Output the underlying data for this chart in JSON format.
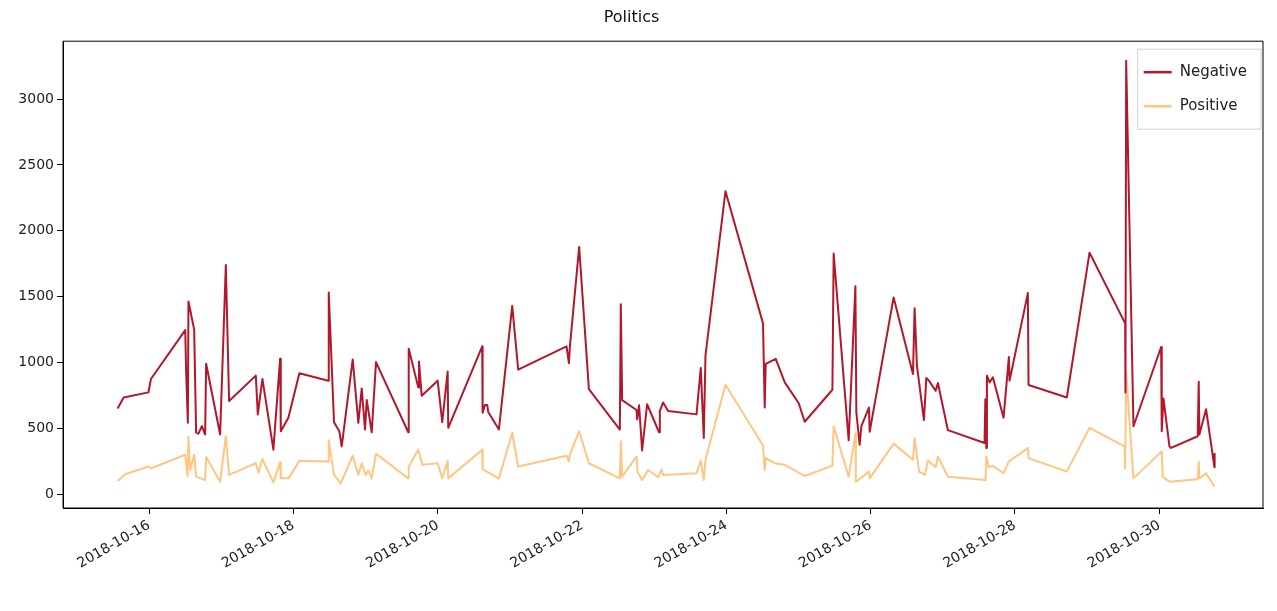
{
  "chart_data": {
    "type": "line",
    "title": "Politics",
    "xlim": [
      "2018-10-14T19:20",
      "2018-10-31T10:30"
    ],
    "xticks": [
      "2018-10-16",
      "2018-10-18",
      "2018-10-20",
      "2018-10-22",
      "2018-10-24",
      "2018-10-26",
      "2018-10-28",
      "2018-10-30"
    ],
    "ylim": [
      -105,
      3440
    ],
    "yticks": [
      0,
      500,
      1000,
      1500,
      2000,
      2500,
      3000
    ],
    "legend": "top right",
    "series": [
      {
        "name": "Negative",
        "color": "#b2182b",
        "x": [
          "2018-10-15T13:30",
          "2018-10-15T15:30",
          "2018-10-15T23:45",
          "2018-10-16T00:35",
          "2018-10-16T12:00",
          "2018-10-16T12:18",
          "2018-10-16T12:52",
          "2018-10-16T13:04",
          "2018-10-16T14:58",
          "2018-10-16T15:37",
          "2018-10-16T16:23",
          "2018-10-16T17:31",
          "2018-10-16T18:37",
          "2018-10-16T18:57",
          "2018-10-16T23:36",
          "2018-10-17T01:30",
          "2018-10-17T02:35",
          "2018-10-17T11:28",
          "2018-10-17T12:08",
          "2018-10-17T13:40",
          "2018-10-17T17:19",
          "2018-10-17T19:33",
          "2018-10-17T19:47",
          "2018-10-17T22:18",
          "2018-10-18T01:58",
          "2018-10-18T11:36",
          "2018-10-18T11:44",
          "2018-10-18T13:29",
          "2018-10-18T15:15",
          "2018-10-18T16:03",
          "2018-10-18T19:42",
          "2018-10-18T21:34",
          "2018-10-18T22:42",
          "2018-10-18T23:48",
          "2018-10-19T00:22",
          "2018-10-19T02:02",
          "2018-10-19T03:27",
          "2018-10-19T14:11",
          "2018-10-19T14:20",
          "2018-10-19T17:31",
          "2018-10-19T17:45",
          "2018-10-19T18:39",
          "2018-10-19T23:58",
          "2018-10-20T01:29",
          "2018-10-20T03:17",
          "2018-10-20T03:29",
          "2018-10-20T14:47",
          "2018-10-20T14:55",
          "2018-10-20T15:41",
          "2018-10-20T16:27",
          "2018-10-20T16:47",
          "2018-10-20T20:20",
          "2018-10-21T00:46",
          "2018-10-21T02:45",
          "2018-10-21T18:50",
          "2018-10-21T19:37",
          "2018-10-21T19:57",
          "2018-10-21T23:02",
          "2018-10-22T02:16",
          "2018-10-22T12:34",
          "2018-10-22T12:53",
          "2018-10-22T13:20",
          "2018-10-22T18:07",
          "2018-10-22T18:19",
          "2018-10-22T18:58",
          "2018-10-22T19:58",
          "2018-10-22T21:38",
          "2018-10-23T01:37",
          "2018-10-23T01:52",
          "2018-10-23T02:57",
          "2018-10-23T04:37",
          "2018-10-23T14:04",
          "2018-10-23T15:29",
          "2018-10-23T16:29",
          "2018-10-23T17:03",
          "2018-10-23T23:42",
          "2018-10-24T12:11",
          "2018-10-24T12:45",
          "2018-10-24T13:05",
          "2018-10-24T16:25",
          "2018-10-24T19:25",
          "2018-10-25T00:04",
          "2018-10-25T02:03",
          "2018-10-25T11:16",
          "2018-10-25T11:41",
          "2018-10-25T16:41",
          "2018-10-25T18:55",
          "2018-10-25T19:14",
          "2018-10-25T20:20",
          "2018-10-25T20:54",
          "2018-10-25T23:25",
          "2018-10-25T23:40",
          "2018-10-26T07:38",
          "2018-10-26T14:04",
          "2018-10-26T14:37",
          "2018-10-26T15:23",
          "2018-10-26T17:43",
          "2018-10-26T18:31",
          "2018-10-26T19:22",
          "2018-10-26T21:36",
          "2018-10-26T22:22",
          "2018-10-27T01:41",
          "2018-10-27T13:53",
          "2018-10-27T14:08",
          "2018-10-27T14:28",
          "2018-10-27T14:40",
          "2018-10-27T15:33",
          "2018-10-27T16:39",
          "2018-10-27T20:12",
          "2018-10-27T21:58",
          "2018-10-27T22:12",
          "2018-10-28T04:17",
          "2018-10-28T04:31",
          "2018-10-28T17:15",
          "2018-10-29T00:48",
          "2018-10-29T12:39",
          "2018-10-29T12:45",
          "2018-10-29T12:59",
          "2018-10-29T15:25",
          "2018-10-30T00:37",
          "2018-10-30T00:49",
          "2018-10-30T01:23",
          "2018-10-30T03:23",
          "2018-10-30T03:56",
          "2018-10-30T12:47",
          "2018-10-30T13:07",
          "2018-10-30T13:21",
          "2018-10-30T15:34",
          "2018-10-30T18:20",
          "2018-10-30T18:25"
        ],
        "values": [
          650,
          734,
          773,
          875,
          1246,
          926,
          542,
          1463,
          1250,
          468,
          460,
          516,
          453,
          990,
          453,
          1740,
          708,
          900,
          606,
          875,
          338,
          1028,
          478,
          581,
          918,
          862,
          1532,
          547,
          478,
          363,
          1023,
          542,
          803,
          491,
          716,
          470,
          1003,
          470,
          1105,
          811,
          1008,
          747,
          862,
          547,
          931,
          504,
          1123,
          619,
          678,
          678,
          624,
          491,
          1430,
          946,
          1123,
          995,
          1123,
          1878,
          798,
          491,
          1443,
          714,
          639,
          568,
          675,
          332,
          683,
          470,
          632,
          696,
          632,
          606,
          959,
          427,
          1054,
          2300,
          1297,
          658,
          990,
          1028,
          849,
          691,
          550,
          793,
          1827,
          409,
          1579,
          619,
          376,
          516,
          658,
          474,
          1494,
          913,
          1412,
          977,
          563,
          883,
          862,
          785,
          844,
          486,
          389,
          721,
          351,
          900,
          849,
          888,
          581,
          1041,
          862,
          1527,
          829,
          734,
          1834,
          1297,
          773,
          3292,
          516,
          1118,
          478,
          727,
          363,
          351,
          440,
          854,
          453,
          645,
          205,
          312
        ]
      },
      {
        "name": "Positive",
        "color": "#fec680",
        "x": [
          "2018-10-15T13:30",
          "2018-10-15T16:00",
          "2018-10-15T23:45",
          "2018-10-16T00:35",
          "2018-10-16T12:00",
          "2018-10-16T12:46",
          "2018-10-16T13:04",
          "2018-10-16T13:38",
          "2018-10-16T14:58",
          "2018-10-16T15:37",
          "2018-10-16T18:37",
          "2018-10-16T18:57",
          "2018-10-16T23:36",
          "2018-10-17T01:30",
          "2018-10-17T02:35",
          "2018-10-17T11:28",
          "2018-10-17T12:20",
          "2018-10-17T13:40",
          "2018-10-17T17:19",
          "2018-10-17T19:33",
          "2018-10-17T19:47",
          "2018-10-17T22:18",
          "2018-10-18T01:58",
          "2018-10-18T11:36",
          "2018-10-18T11:44",
          "2018-10-18T13:29",
          "2018-10-18T15:43",
          "2018-10-18T19:42",
          "2018-10-18T21:34",
          "2018-10-18T22:42",
          "2018-10-19T00:02",
          "2018-10-19T00:54",
          "2018-10-19T02:02",
          "2018-10-19T03:27",
          "2018-10-19T14:11",
          "2018-10-19T14:20",
          "2018-10-19T17:31",
          "2018-10-19T18:51",
          "2018-10-19T23:58",
          "2018-10-20T01:29",
          "2018-10-20T03:17",
          "2018-10-20T03:29",
          "2018-10-20T14:47",
          "2018-10-20T14:55",
          "2018-10-20T20:20",
          "2018-10-21T00:46",
          "2018-10-21T02:45",
          "2018-10-21T18:50",
          "2018-10-21T19:37",
          "2018-10-21T19:57",
          "2018-10-21T23:02",
          "2018-10-22T02:16",
          "2018-10-22T12:34",
          "2018-10-22T12:53",
          "2018-10-22T13:20",
          "2018-10-22T18:07",
          "2018-10-22T18:27",
          "2018-10-22T19:58",
          "2018-10-22T21:58",
          "2018-10-23T01:18",
          "2018-10-23T02:25",
          "2018-10-23T02:57",
          "2018-10-23T14:04",
          "2018-10-23T15:29",
          "2018-10-23T16:29",
          "2018-10-23T17:03",
          "2018-10-23T23:42",
          "2018-10-24T12:11",
          "2018-10-24T12:45",
          "2018-10-24T13:05",
          "2018-10-24T16:05",
          "2018-10-24T19:25",
          "2018-10-25T02:03",
          "2018-10-25T11:16",
          "2018-10-25T11:41",
          "2018-10-25T16:41",
          "2018-10-25T18:55",
          "2018-10-25T19:04",
          "2018-10-25T20:20",
          "2018-10-25T23:25",
          "2018-10-25T23:40",
          "2018-10-26T07:38",
          "2018-10-26T14:04",
          "2018-10-26T14:37",
          "2018-10-26T16:06",
          "2018-10-26T18:00",
          "2018-10-26T19:02",
          "2018-10-26T21:36",
          "2018-10-26T22:22",
          "2018-10-27T01:41",
          "2018-10-27T14:13",
          "2018-10-27T14:28",
          "2018-10-27T15:19",
          "2018-10-27T16:39",
          "2018-10-27T20:12",
          "2018-10-27T21:58",
          "2018-10-28T04:17",
          "2018-10-28T04:31",
          "2018-10-28T17:15",
          "2018-10-29T00:48",
          "2018-10-29T12:25",
          "2018-10-29T12:39",
          "2018-10-29T12:59",
          "2018-10-29T15:25",
          "2018-10-30T00:49",
          "2018-10-30T01:09",
          "2018-10-30T03:23",
          "2018-10-30T12:47",
          "2018-10-30T13:07",
          "2018-10-30T13:21",
          "2018-10-30T15:34",
          "2018-10-30T18:20"
        ],
        "values": [
          100,
          151,
          210,
          195,
          299,
          138,
          435,
          184,
          299,
          133,
          107,
          282,
          94,
          440,
          146,
          235,
          163,
          266,
          90,
          243,
          120,
          120,
          253,
          248,
          409,
          146,
          82,
          292,
          146,
          235,
          146,
          179,
          120,
          307,
          120,
          210,
          338,
          223,
          235,
          120,
          253,
          120,
          338,
          189,
          120,
          466,
          210,
          292,
          248,
          300,
          478,
          235,
          120,
          401,
          133,
          286,
          171,
          107,
          184,
          128,
          189,
          146,
          159,
          256,
          107,
          261,
          831,
          371,
          184,
          274,
          235,
          223,
          138,
          217,
          516,
          133,
          460,
          94,
          115,
          171,
          120,
          384,
          261,
          427,
          171,
          146,
          256,
          205,
          286,
          133,
          107,
          286,
          205,
          215,
          159,
          248,
          351,
          274,
          171,
          504,
          363,
          197,
          926,
          120,
          325,
          133,
          94,
          113,
          248,
          120,
          159,
          56
        ]
      }
    ]
  }
}
